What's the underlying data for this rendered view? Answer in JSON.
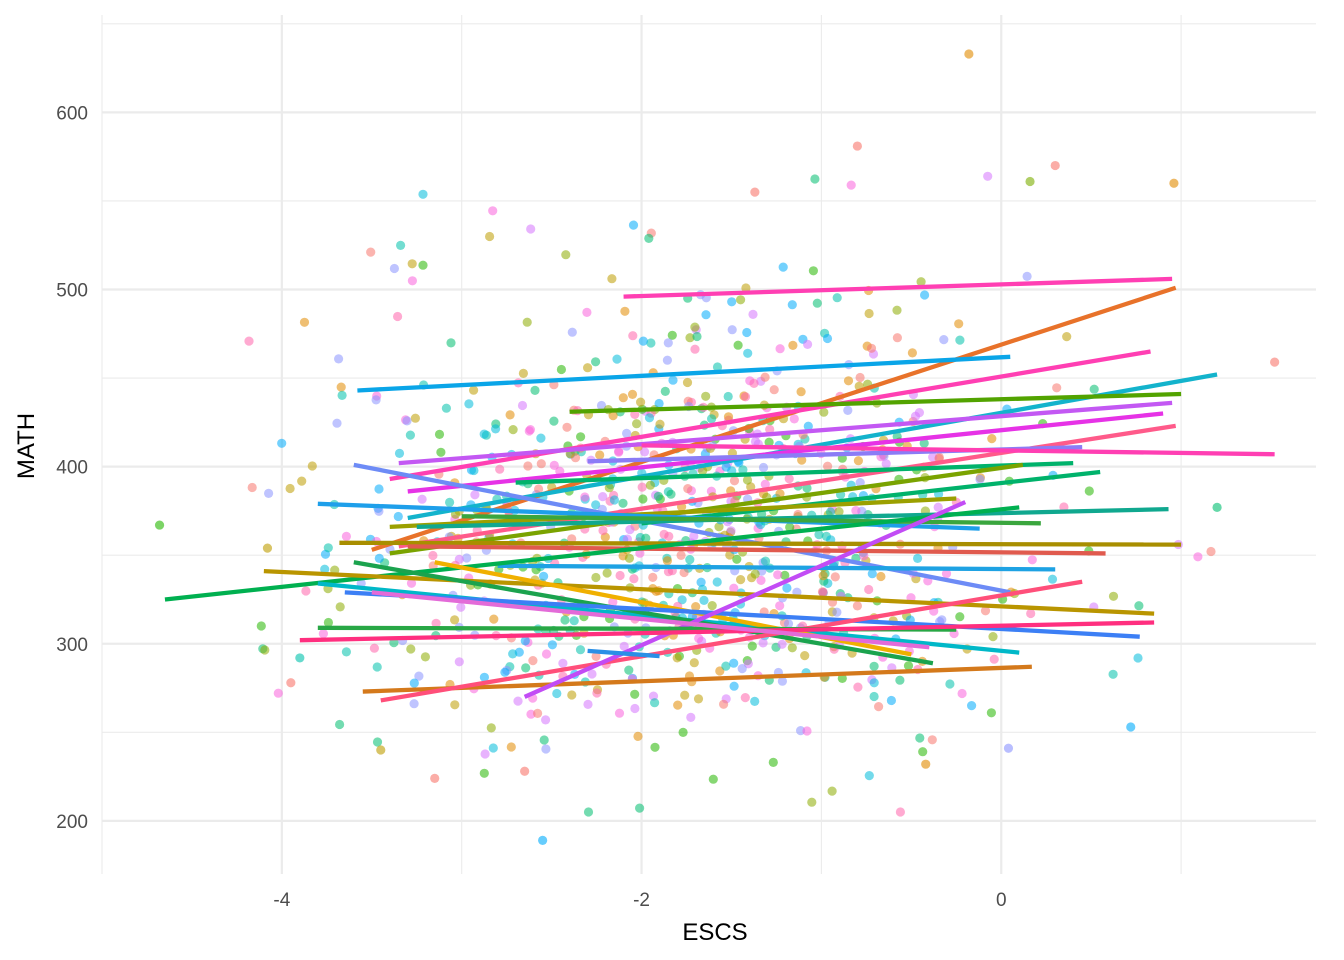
{
  "chart_data": {
    "type": "scatter",
    "title": "",
    "xlabel": "ESCS",
    "ylabel": "MATH",
    "xlim": [
      -5.0,
      1.75
    ],
    "ylim": [
      170,
      655
    ],
    "x_ticks": [
      -4,
      -2,
      0
    ],
    "x_tick_labels": [
      "-4",
      "-2",
      "0"
    ],
    "y_ticks": [
      200,
      300,
      400,
      500,
      600
    ],
    "y_tick_labels": [
      "200",
      "300",
      "400",
      "500",
      "600"
    ],
    "grid": true,
    "legend": "none",
    "point_count": 900,
    "overlay": "per-group linear regression lines",
    "outlier_points": [
      {
        "x": -0.18,
        "y": 633,
        "color": "#E18A00"
      },
      {
        "x": -0.8,
        "y": 581,
        "color": "#F8766D"
      },
      {
        "x": 0.96,
        "y": 560,
        "color": "#E18A00"
      },
      {
        "x": 0.3,
        "y": 570,
        "color": "#F8766D"
      },
      {
        "x": 0.16,
        "y": 561,
        "color": "#7CAE00"
      },
      {
        "x": -1.37,
        "y": 555,
        "color": "#F8766D"
      },
      {
        "x": -4.68,
        "y": 367,
        "color": "#24B700"
      },
      {
        "x": -2.55,
        "y": 189,
        "color": "#00ACFC"
      },
      {
        "x": -3.15,
        "y": 224,
        "color": "#F8766D"
      },
      {
        "x": -3.95,
        "y": 278,
        "color": "#F8766D"
      },
      {
        "x": -4.08,
        "y": 354,
        "color": "#BE9C00"
      },
      {
        "x": 1.52,
        "y": 459,
        "color": "#F8766D"
      },
      {
        "x": 1.2,
        "y": 377,
        "color": "#00BE70"
      },
      {
        "x": 0.72,
        "y": 253,
        "color": "#00ACFC"
      },
      {
        "x": 0.04,
        "y": 241,
        "color": "#8B93FF"
      },
      {
        "x": -0.42,
        "y": 232,
        "color": "#E18A00"
      },
      {
        "x": -2.65,
        "y": 228,
        "color": "#F8766D"
      },
      {
        "x": -3.45,
        "y": 240,
        "color": "#BE9C00"
      },
      {
        "x": -3.9,
        "y": 292,
        "color": "#00C1AB"
      }
    ],
    "series": [
      {
        "color": "#FF3FB3",
        "x": [
          -2.1,
          0.95
        ],
        "y": [
          496,
          506
        ]
      },
      {
        "color": "#E8722A",
        "x": [
          -3.5,
          0.97
        ],
        "y": [
          353,
          501
        ]
      },
      {
        "color": "#0AA5E8",
        "x": [
          -3.58,
          0.05
        ],
        "y": [
          443,
          462
        ]
      },
      {
        "color": "#FF3FB3",
        "x": [
          -3.4,
          0.83
        ],
        "y": [
          393,
          465
        ]
      },
      {
        "color": "#13B3CC",
        "x": [
          -3.3,
          1.2
        ],
        "y": [
          371,
          452
        ]
      },
      {
        "color": "#52A300",
        "x": [
          -2.4,
          1.0
        ],
        "y": [
          431,
          441
        ]
      },
      {
        "color": "#C358F3",
        "x": [
          -3.35,
          0.95
        ],
        "y": [
          402,
          436
        ]
      },
      {
        "color": "#E632E6",
        "x": [
          -3.3,
          0.9
        ],
        "y": [
          386,
          430
        ]
      },
      {
        "color": "#FF5A8A",
        "x": [
          -3.35,
          0.97
        ],
        "y": [
          355,
          423
        ]
      },
      {
        "color": "#8B7CF6",
        "x": [
          -2.3,
          0.45
        ],
        "y": [
          403,
          411
        ]
      },
      {
        "color": "#FF3FB3",
        "x": [
          -2.0,
          1.52
        ],
        "y": [
          412,
          407
        ]
      },
      {
        "color": "#6D8BF6",
        "x": [
          -3.6,
          0.05
        ],
        "y": [
          401,
          329
        ]
      },
      {
        "color": "#00B26B",
        "x": [
          -2.7,
          0.4
        ],
        "y": [
          391,
          402
        ]
      },
      {
        "color": "#7AA300",
        "x": [
          -3.4,
          0.12
        ],
        "y": [
          351,
          401
        ]
      },
      {
        "color": "#00B26B",
        "x": [
          -2.0,
          0.55
        ],
        "y": [
          368,
          397
        ]
      },
      {
        "color": "#9BA000",
        "x": [
          -3.4,
          -0.25
        ],
        "y": [
          366,
          382
        ]
      },
      {
        "color": "#1E9FEA",
        "x": [
          -3.8,
          -0.12
        ],
        "y": [
          379,
          365
        ]
      },
      {
        "color": "#10A88F",
        "x": [
          -3.25,
          0.93
        ],
        "y": [
          366,
          376
        ]
      },
      {
        "color": "#3AA63E",
        "x": [
          -3.0,
          0.22
        ],
        "y": [
          372,
          368
        ]
      },
      {
        "color": "#A88E00",
        "x": [
          -3.68,
          1.0
        ],
        "y": [
          357,
          356
        ]
      },
      {
        "color": "#E05A4E",
        "x": [
          -3.3,
          0.58
        ],
        "y": [
          355,
          351
        ]
      },
      {
        "color": "#1EA2E3",
        "x": [
          -2.8,
          0.3
        ],
        "y": [
          344,
          342
        ]
      },
      {
        "color": "#00B050",
        "x": [
          -4.65,
          0.1
        ],
        "y": [
          325,
          377
        ]
      },
      {
        "color": "#B99500",
        "x": [
          -4.1,
          0.85
        ],
        "y": [
          341,
          317
        ]
      },
      {
        "color": "#00B8C8",
        "x": [
          -3.8,
          0.1
        ],
        "y": [
          334,
          295
        ]
      },
      {
        "color": "#1BA34E",
        "x": [
          -3.6,
          -0.38
        ],
        "y": [
          346,
          289
        ]
      },
      {
        "color": "#F0B000",
        "x": [
          -3.15,
          -0.5
        ],
        "y": [
          346,
          294
        ]
      },
      {
        "color": "#3C7FF5",
        "x": [
          -3.65,
          0.77
        ],
        "y": [
          329,
          304
        ]
      },
      {
        "color": "#D4791B",
        "x": [
          -3.55,
          0.17
        ],
        "y": [
          273,
          287
        ]
      },
      {
        "color": "#FF4F7A",
        "x": [
          -3.45,
          0.45
        ],
        "y": [
          268,
          335
        ]
      },
      {
        "color": "#C24CF5",
        "x": [
          -2.65,
          -0.2
        ],
        "y": [
          270,
          380
        ]
      },
      {
        "color": "#28A745",
        "x": [
          -3.8,
          -0.25
        ],
        "y": [
          309,
          308
        ]
      },
      {
        "color": "#FF2F7F",
        "x": [
          -3.9,
          0.85
        ],
        "y": [
          302,
          312
        ]
      },
      {
        "color": "#2A8FE6",
        "x": [
          -2.3,
          -1.9
        ],
        "y": [
          296,
          293
        ]
      },
      {
        "color": "#E36BD8",
        "x": [
          -3.5,
          -0.4
        ],
        "y": [
          329,
          298
        ]
      }
    ]
  }
}
